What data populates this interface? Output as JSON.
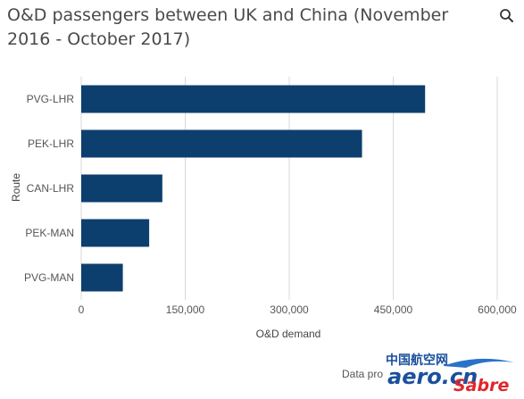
{
  "header": {
    "title": "O&D passengers between UK and China (November 2016 - October 2017)",
    "search_icon": "magnifier"
  },
  "chart_data": {
    "type": "bar",
    "orientation": "horizontal",
    "title": "O&D passengers between UK and China (November 2016 - October 2017)",
    "xlabel": "O&D demand",
    "ylabel": "Route",
    "categories": [
      "PVG-LHR",
      "PEK-LHR",
      "CAN-LHR",
      "PEK-MAN",
      "PVG-MAN"
    ],
    "values": [
      496000,
      405000,
      117000,
      98000,
      60000
    ],
    "xlim": [
      0,
      600000
    ],
    "xticks": [
      0,
      150000,
      300000,
      450000,
      600000
    ],
    "xtick_labels": [
      "0",
      "150,000",
      "300,000",
      "450,000",
      "600,000"
    ],
    "grid": "vertical",
    "bar_color": "#0d3f6e",
    "grid_color": "#d9d9d9"
  },
  "footer": {
    "source_text": "Data pro",
    "logo_text_cn": "中国航空网",
    "logo_text": "aero.cn",
    "logo_text_2": "Sabre"
  }
}
